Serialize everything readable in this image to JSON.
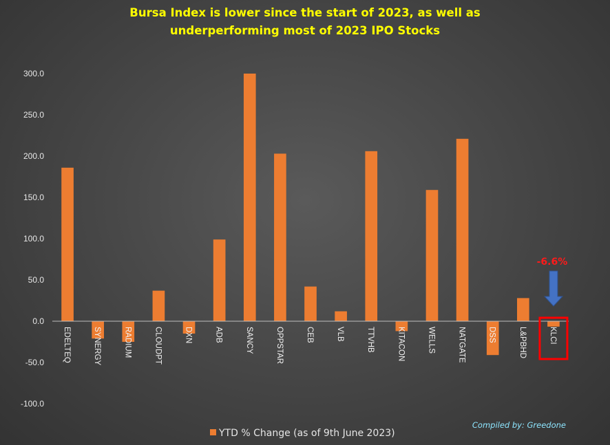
{
  "chart_data": {
    "type": "bar",
    "title_lines": [
      "Bursa Index is lower since the start of 2023, as well as",
      "underperforming most of 2023 IPO Stocks"
    ],
    "categories": [
      "EDELTEQ",
      "SYNERGY",
      "RADIUM",
      "CLOUDPT",
      "DXN",
      "ADB",
      "SANCY",
      "OPPSTAR",
      "CEB",
      "VLB",
      "TTVHB",
      "KITACON",
      "WELLS",
      "NATGATE",
      "DSS",
      "L&PBHD",
      "KLCI"
    ],
    "series": [
      {
        "name": "YTD % Change (as of 9th June 2023)",
        "values": [
          186,
          -21,
          -25,
          37,
          -15,
          99,
          300,
          203,
          42,
          12,
          206,
          -12,
          159,
          221,
          -41,
          28,
          -6.6
        ]
      }
    ],
    "ylim": [
      -100,
      300
    ],
    "yticks": [
      "-100.0",
      "-50.0",
      "0.0",
      "50.0",
      "100.0",
      "150.0",
      "200.0",
      "250.0",
      "300.0"
    ],
    "grid": false,
    "legend_position": "bottom",
    "bar_color": "#ed7d31",
    "annotation": {
      "category": "KLCI",
      "text": "-6.6%",
      "color": "#ff1a1a",
      "arrow_color": "#4472c4"
    }
  },
  "credit": "Compiled by: Greedone"
}
